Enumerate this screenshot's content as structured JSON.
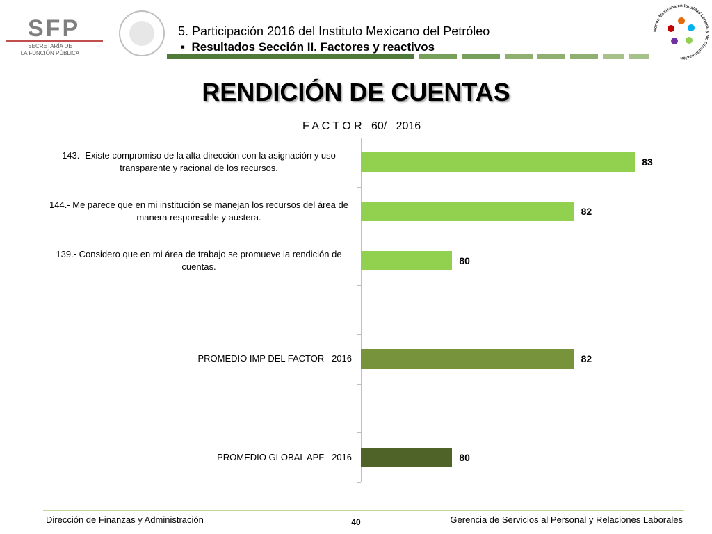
{
  "header": {
    "logo_main": "SFP",
    "logo_sub": [
      "SECRETARÍA DE",
      "LA FUNCIÓN PÚBLICA"
    ],
    "section": "5. Participación 2016 del Instituto Mexicano del Petróleo",
    "bullet": "Resultados Sección II. Factores y reactivos",
    "seal_text": "Norma Mexicana en Igualdad Laboral y No Discriminación"
  },
  "chart_data": {
    "type": "barh",
    "title": "RENDICIÓN DE CUENTAS",
    "subtitle": "F A C T O R   60/   2016",
    "categories": [
      "143.- Existe compromiso de la alta dirección con la asignación y uso transparente y racional de los recursos.",
      "144.- Me parece que en mi institución se manejan los recursos del área de manera responsable y austera.",
      "139.- Considero que en mi área de trabajo se promueve la rendición de cuentas.",
      null,
      "PROMEDIO IMP DEL FACTOR   2016",
      null,
      "PROMEDIO GLOBAL APF   2016"
    ],
    "values": [
      83,
      82,
      80,
      null,
      82,
      null,
      80
    ],
    "colors": [
      "#92d050",
      "#92d050",
      "#92d050",
      null,
      "#77933c",
      null,
      "#4f6228"
    ],
    "xlim": [
      78.5,
      83.5
    ]
  },
  "footer": {
    "left": "Dirección de Finanzas y Administración",
    "page": "40",
    "right": "Gerencia de Servicios al Personal y Relaciones Laborales"
  }
}
